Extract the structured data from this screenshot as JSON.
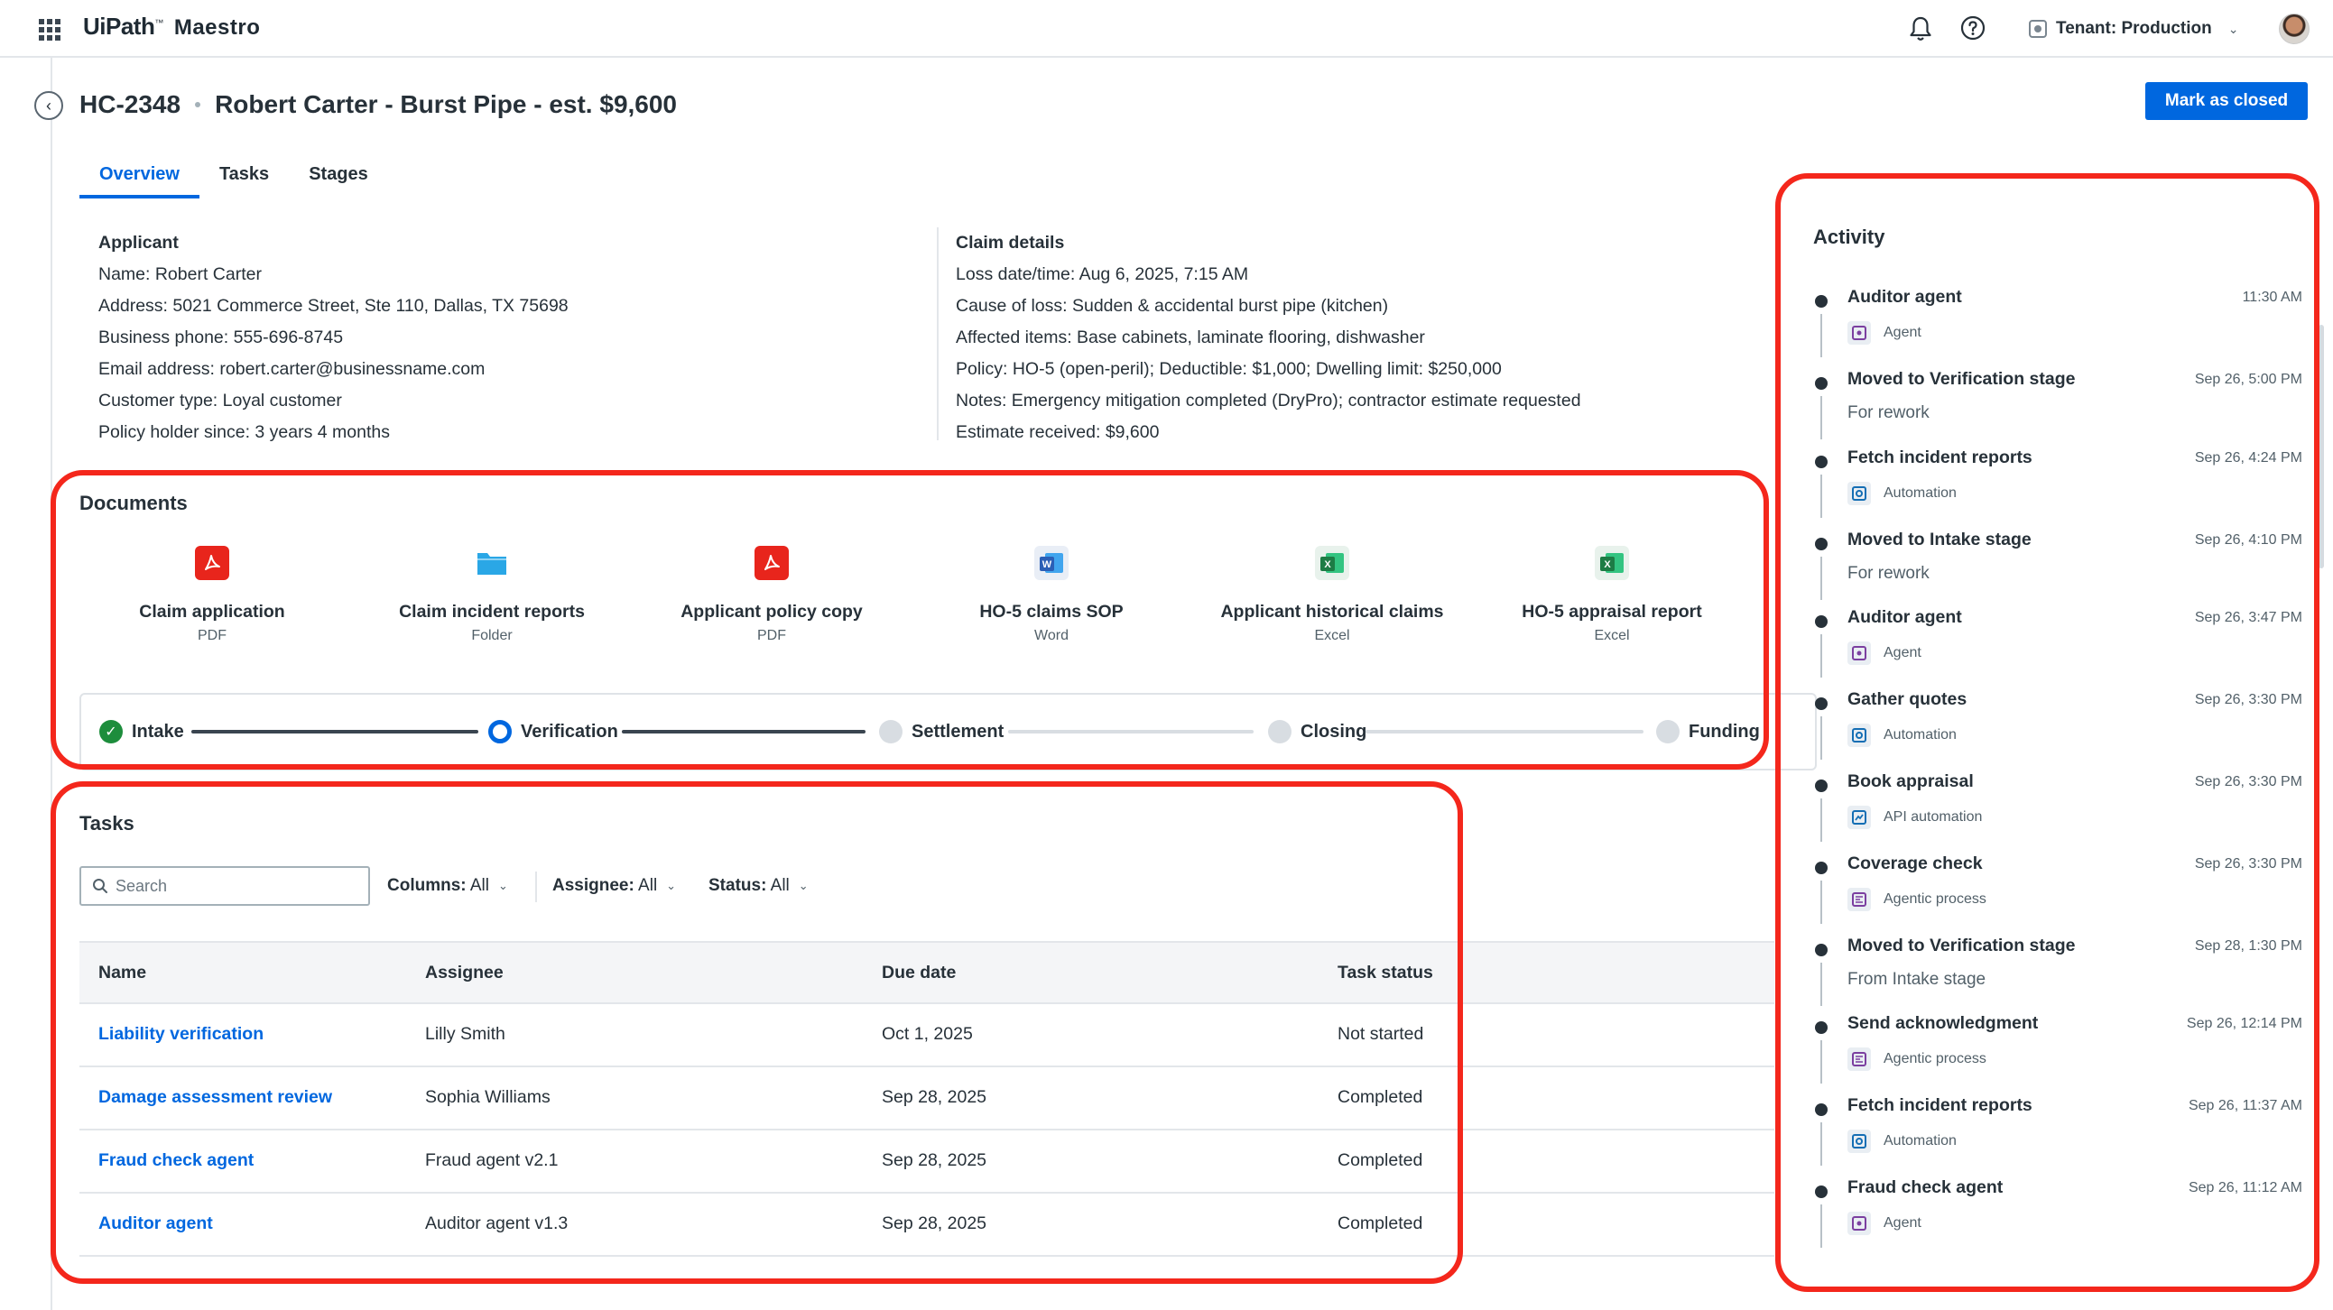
{
  "app": {
    "brand": "UiPath",
    "brand_mark": "™",
    "product": "Maestro"
  },
  "topbar": {
    "tenant_label": "Tenant: Production",
    "icons": [
      "apps-grid-icon",
      "bell-icon",
      "help-icon",
      "tenant-icon",
      "chevron-down-icon",
      "user-avatar"
    ]
  },
  "case": {
    "id": "HC-2348",
    "title": "Robert Carter - Burst Pipe - est. $9,600",
    "mark_closed_label": "Mark as closed"
  },
  "tabs": [
    "Overview",
    "Tasks",
    "Stages"
  ],
  "active_tab": "Overview",
  "applicant": {
    "heading": "Applicant",
    "lines": [
      "Name: Robert Carter",
      "Address: 5021 Commerce Street, Ste 110, Dallas, TX 75698",
      "Business phone: 555-696-8745",
      "Email address: robert.carter@businessname.com",
      "Customer type: Loyal customer",
      "Policy holder since: 3 years 4 months"
    ]
  },
  "claim_details": {
    "heading": "Claim details",
    "lines": [
      "Loss date/time: Aug 6, 2025, 7:15 AM",
      "Cause of loss: Sudden & accidental burst pipe (kitchen)",
      "Affected items: Base cabinets, laminate flooring, dishwasher",
      "Policy: HO-5 (open-peril); Deductible: $1,000; Dwelling limit: $250,000",
      "Notes: Emergency mitigation completed (DryPro); contractor estimate requested",
      "Estimate received: $9,600"
    ]
  },
  "documents": {
    "title": "Documents",
    "items": [
      {
        "name": "Claim application",
        "type": "PDF",
        "icon": "pdf-icon",
        "color": "#e8251c"
      },
      {
        "name": "Claim incident reports",
        "type": "Folder",
        "icon": "folder-icon",
        "color": "#2aa7e6"
      },
      {
        "name": "Applicant policy copy",
        "type": "PDF",
        "icon": "pdf-icon",
        "color": "#e8251c"
      },
      {
        "name": "HO-5 claims SOP",
        "type": "Word",
        "icon": "word-icon",
        "color": "#2b5fb6"
      },
      {
        "name": "Applicant historical claims",
        "type": "Excel",
        "icon": "excel-icon",
        "color": "#1d7c45"
      },
      {
        "name": "HO-5 appraisal report",
        "type": "Excel",
        "icon": "excel-icon",
        "color": "#1d7c45"
      }
    ]
  },
  "stages": [
    {
      "label": "Intake",
      "state": "done"
    },
    {
      "label": "Verification",
      "state": "current"
    },
    {
      "label": "Settlement",
      "state": "todo"
    },
    {
      "label": "Closing",
      "state": "todo"
    },
    {
      "label": "Funding",
      "state": "todo"
    }
  ],
  "tasks": {
    "title": "Tasks",
    "search_placeholder": "Search",
    "filters": [
      {
        "label": "Columns:",
        "value": "All"
      },
      {
        "label": "Assignee:",
        "value": "All"
      },
      {
        "label": "Status:",
        "value": "All"
      }
    ],
    "columns": [
      "Name",
      "Assignee",
      "Due date",
      "Task status"
    ],
    "rows": [
      [
        "Liability verification",
        "Lilly Smith",
        "Oct 1, 2025",
        "Not started"
      ],
      [
        "Damage assessment review",
        "Sophia Williams",
        "Sep 28, 2025",
        "Completed"
      ],
      [
        "Fraud check agent",
        "Fraud agent v2.1",
        "Sep 28, 2025",
        "Completed"
      ],
      [
        "Auditor agent",
        "Auditor agent v1.3",
        "Sep 28, 2025",
        "Completed"
      ]
    ]
  },
  "activity": {
    "title": "Activity",
    "items": [
      {
        "title": "Auditor agent",
        "time": "11:30 AM",
        "type": "Agent",
        "icon": "agent-icon"
      },
      {
        "title": "Moved to Verification stage",
        "time": "Sep 26, 5:00 PM",
        "subtitle": "For rework"
      },
      {
        "title": "Fetch incident reports",
        "time": "Sep 26, 4:24 PM",
        "type": "Automation",
        "icon": "automation-icon"
      },
      {
        "title": "Moved to Intake stage",
        "time": "Sep 26, 4:10 PM",
        "subtitle": "For rework"
      },
      {
        "title": "Auditor agent",
        "time": "Sep 26, 3:47 PM",
        "type": "Agent",
        "icon": "agent-icon"
      },
      {
        "title": "Gather quotes",
        "time": "Sep 26, 3:30 PM",
        "type": "Automation",
        "icon": "automation-icon"
      },
      {
        "title": "Book appraisal",
        "time": "Sep 26, 3:30 PM",
        "type": "API automation",
        "icon": "api-automation-icon"
      },
      {
        "title": "Coverage check",
        "time": "Sep 26, 3:30 PM",
        "type": "Agentic process",
        "icon": "agentic-process-icon"
      },
      {
        "title": "Moved to Verification stage",
        "time": "Sep 28, 1:30 PM",
        "subtitle": "From Intake stage"
      },
      {
        "title": "Send acknowledgment",
        "time": "Sep 26, 12:14 PM",
        "type": "Agentic process",
        "icon": "agentic-process-icon"
      },
      {
        "title": "Fetch incident reports",
        "time": "Sep 26, 11:37 AM",
        "type": "Automation",
        "icon": "automation-icon"
      },
      {
        "title": "Fraud check agent",
        "time": "Sep 26, 11:12 AM",
        "type": "Agent",
        "icon": "agent-icon"
      }
    ]
  },
  "colors": {
    "accent": "#0067df",
    "annotation": "#f4271c",
    "stage_done": "#1d8d3c",
    "agent_icon": "#7b3fa0",
    "automation_icon": "#146eb4",
    "type_icon_bg": "#e9eef3"
  }
}
